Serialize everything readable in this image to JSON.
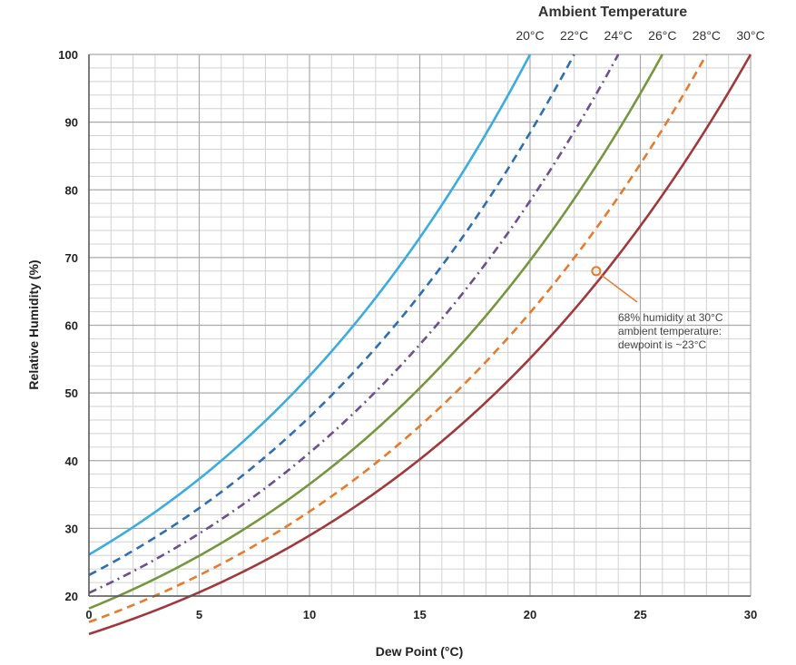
{
  "chart_data": {
    "type": "line",
    "xlabel": "Dew Point (°C)",
    "ylabel": "Relative Humidity (%)",
    "legend_title": "Ambient Temperature",
    "legend_placement": "top-right",
    "xlim": [
      0,
      30
    ],
    "ylim": [
      20,
      100
    ],
    "x_ticks": [
      "0",
      "5",
      "10",
      "15",
      "20",
      "25",
      "30"
    ],
    "y_ticks": [
      "20",
      "30",
      "40",
      "50",
      "60",
      "70",
      "80",
      "90",
      "100"
    ],
    "grid": true,
    "series": [
      {
        "name": "20°C",
        "color": "#3aace0",
        "dash": "solid",
        "ambient": 20
      },
      {
        "name": "22°C",
        "color": "#2d6fb1",
        "dash": "dashed",
        "ambient": 22
      },
      {
        "name": "24°C",
        "color": "#6c4f8f",
        "dash": "dashdot",
        "ambient": 24
      },
      {
        "name": "26°C",
        "color": "#76963f",
        "dash": "solid",
        "ambient": 26
      },
      {
        "name": "28°C",
        "color": "#e57b2c",
        "dash": "dashed",
        "ambient": 28
      },
      {
        "name": "30°C",
        "color": "#a0383c",
        "dash": "solid",
        "ambient": 30
      }
    ],
    "annotation": {
      "lines": [
        "68% humidity at 30°C",
        "ambient temperature:",
        "dewpoint is ~23°C"
      ],
      "point": {
        "x": 23,
        "y": 68
      },
      "color": "#e57b2c"
    }
  }
}
